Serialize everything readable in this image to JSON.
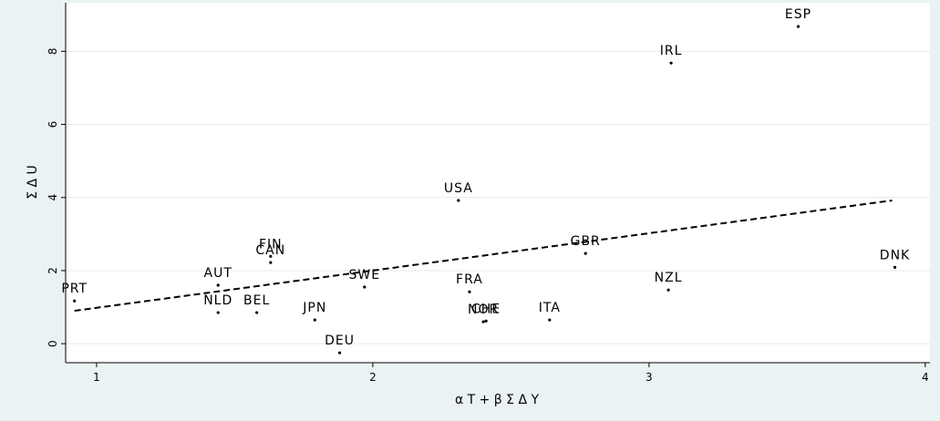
{
  "chart_data": {
    "type": "scatter",
    "x_label": "α T + β Σ Δ Y",
    "y_label": "Σ Δ U",
    "point_labels": [
      "PRT",
      "AUT",
      "NLD",
      "BEL",
      "FIN",
      "CAN",
      "JPN",
      "DEU",
      "SWE",
      "USA",
      "FRA",
      "CHE",
      "NOR",
      "ITA",
      "GBR",
      "NZL",
      "IRL",
      "ESP",
      "DNK"
    ],
    "x": [
      0.92,
      1.44,
      1.44,
      1.58,
      1.63,
      1.63,
      1.79,
      1.88,
      1.97,
      2.31,
      2.35,
      2.41,
      2.4,
      2.64,
      2.77,
      3.07,
      3.08,
      3.54,
      3.89
    ],
    "values": [
      1.17,
      1.6,
      0.85,
      0.85,
      2.39,
      2.22,
      0.65,
      -0.25,
      1.55,
      3.92,
      1.42,
      0.62,
      0.6,
      0.65,
      2.47,
      1.47,
      7.68,
      8.68,
      2.09
    ],
    "color": "#000000",
    "fit": {
      "x": [
        0.92,
        3.88
      ],
      "values": [
        0.9,
        3.92
      ],
      "color": "#000000",
      "dashed": true
    },
    "xlim": [
      0.888,
      4.017
    ],
    "ylim": [
      -0.52,
      9.33
    ],
    "xticks": [
      1,
      2,
      3,
      4
    ],
    "yticks": [
      0,
      2,
      4,
      6,
      8
    ],
    "grid": true
  }
}
